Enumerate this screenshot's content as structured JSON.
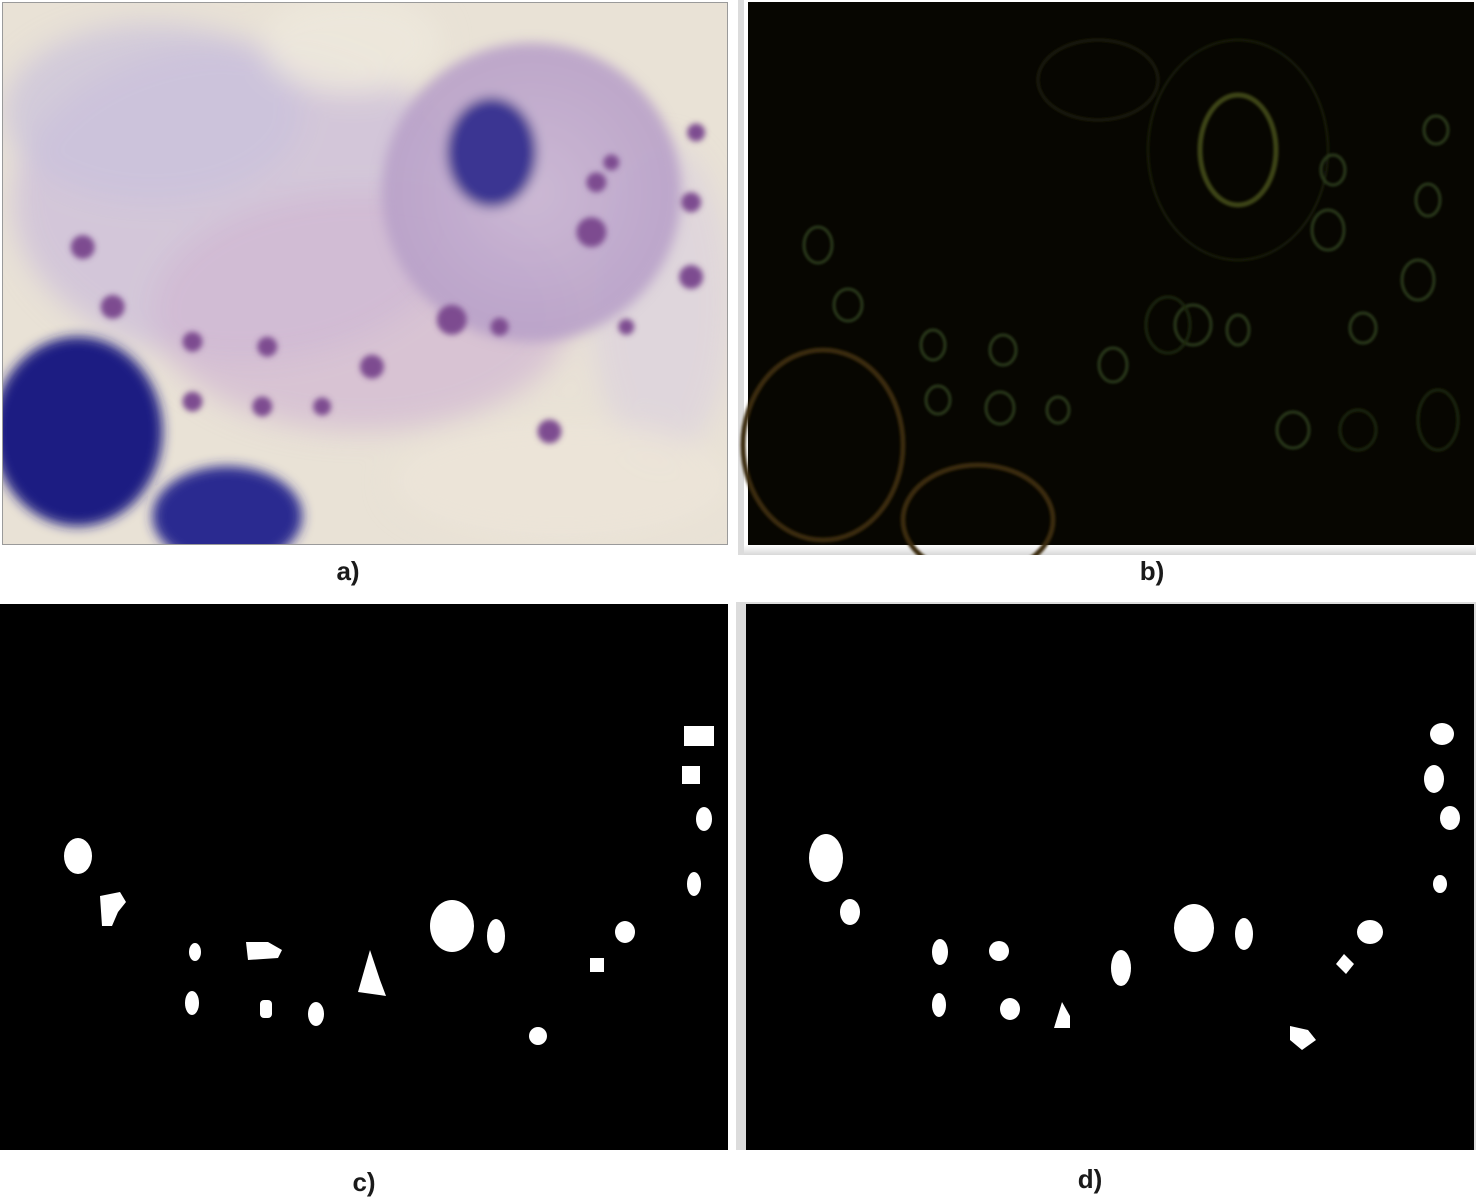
{
  "figure": {
    "panels": [
      {
        "id": "a",
        "label": "a)",
        "content": "stained-cell-micrograph"
      },
      {
        "id": "b",
        "label": "b)",
        "content": "edge-detection-output"
      },
      {
        "id": "c",
        "label": "c)",
        "content": "binary-segmentation-mask"
      },
      {
        "id": "d",
        "label": "d)",
        "content": "binary-segmentation-mask"
      }
    ]
  },
  "colors": {
    "stain_background": "#e9e1d6",
    "cytoplasm": "#c0a8cc",
    "nucleus": "#2b2a8a",
    "granule": "#8a3f7c",
    "edge_line": "#3c4a1e",
    "mask_fg": "#ffffff",
    "mask_bg": "#000000"
  }
}
